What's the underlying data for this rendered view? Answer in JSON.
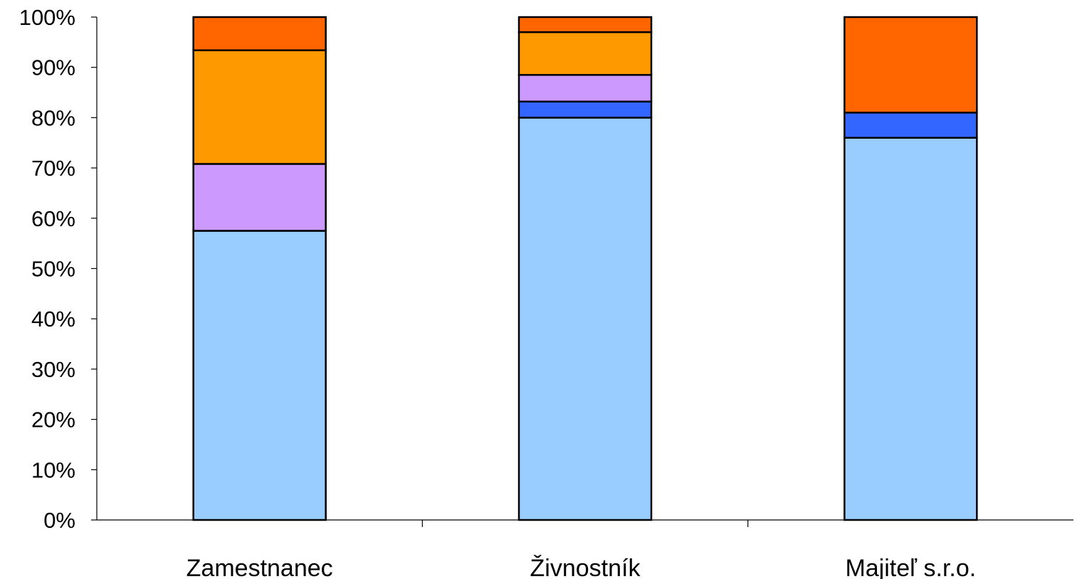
{
  "chart_data": {
    "type": "bar",
    "stacked": true,
    "normalized_percent": true,
    "categories": [
      "Zamestnanec",
      "Živnostník",
      "Majiteľ s.r.o."
    ],
    "y_ticks": [
      "0%",
      "10%",
      "20%",
      "30%",
      "40%",
      "50%",
      "60%",
      "70%",
      "80%",
      "90%",
      "100%"
    ],
    "ylim": [
      0,
      100
    ],
    "grid": false,
    "legend": "none",
    "series": [
      {
        "color": "#99CCFF",
        "values": [
          57.5,
          80.0,
          76.0
        ]
      },
      {
        "color": "#3366FF",
        "values": [
          0.0,
          3.2,
          5.0
        ]
      },
      {
        "color": "#CC99FF",
        "values": [
          13.3,
          5.3,
          0.0
        ]
      },
      {
        "color": "#FF9900",
        "values": [
          22.6,
          8.5,
          0.0
        ]
      },
      {
        "color": "#FF6600",
        "values": [
          6.6,
          3.0,
          19.0
        ]
      }
    ]
  }
}
